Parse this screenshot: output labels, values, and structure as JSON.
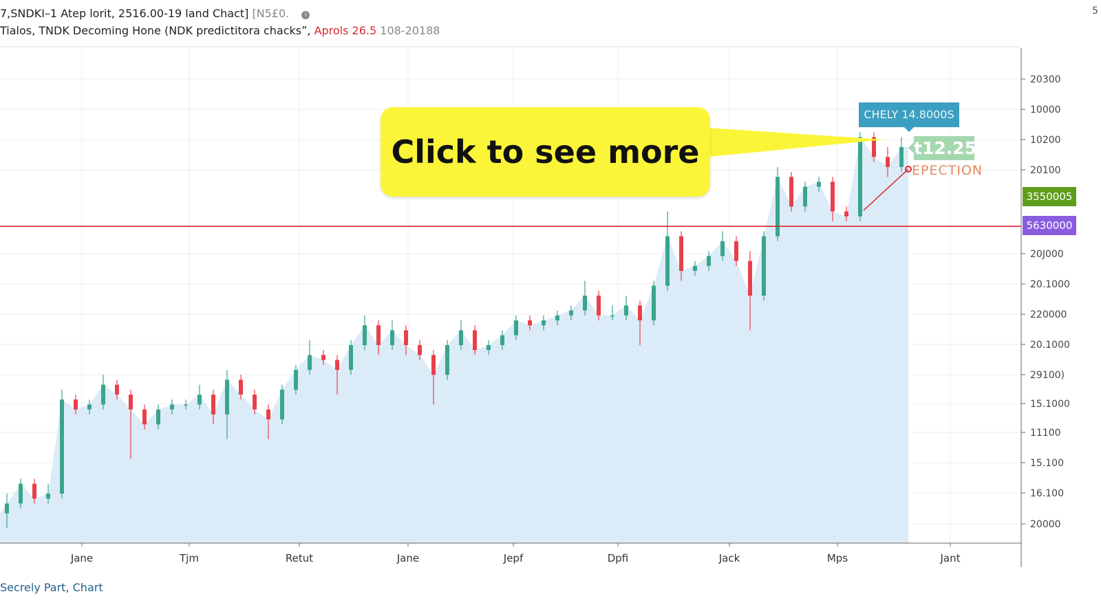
{
  "header": {
    "line1": "7,SNDKI–1 Atep lorit, 2516.00-19 land Chact]",
    "line1_suffix": "[N5£0.",
    "info_icon": "info-icon",
    "line2": "Tialos, TNDK Decoming Hone (NDK predictitora chacksˮ,",
    "line2_red": "Aprols 26.5",
    "line2_gray": "108-20188"
  },
  "corner_mark": "5",
  "footer": "Secrely Part, Chart",
  "callout": {
    "text": "Click to see more",
    "color": "#fbf53a"
  },
  "tooltip": "CHELY 14.8000S",
  "price_label": "t12.25",
  "projection_label": "EPECTION",
  "tags": {
    "green": "3550005",
    "purple": "5630000"
  },
  "colors": {
    "up": "#3aa58c",
    "down": "#e8404b",
    "area": "#dcebf8",
    "hline": "#d8262e",
    "green_tag": "#5f9e1c",
    "purple_tag": "#8a5ce0"
  },
  "chart_data": {
    "type": "candlestick",
    "ylim": [
      0,
      100
    ],
    "grid": true,
    "x_tick_labels": [
      "Jane",
      "Tjm",
      "Retut",
      "Jane",
      "Jepf",
      "Dpfi",
      "Jack",
      "Mps",
      "Jant"
    ],
    "y_tick_labels": [
      "20300",
      "10000",
      "10200",
      "20100",
      "20J000",
      "20.1000",
      "220000",
      "20.1000",
      "29100)",
      "15.1000",
      "11100",
      "15.100",
      "16.100",
      "20000"
    ],
    "horizontal_line": 64,
    "ohlc": [
      [
        6,
        10,
        3,
        8
      ],
      [
        8,
        13,
        7,
        12
      ],
      [
        12,
        13,
        8,
        9
      ],
      [
        9,
        12,
        8,
        10
      ],
      [
        10,
        31,
        9,
        29
      ],
      [
        29,
        30,
        26,
        27
      ],
      [
        27,
        29,
        26,
        28
      ],
      [
        28,
        34,
        27,
        32
      ],
      [
        32,
        33,
        29,
        30
      ],
      [
        30,
        31,
        17,
        27
      ],
      [
        27,
        28,
        23,
        24
      ],
      [
        24,
        28,
        23,
        27
      ],
      [
        27,
        29,
        26,
        28
      ],
      [
        28,
        29,
        27,
        28
      ],
      [
        28,
        32,
        27,
        30
      ],
      [
        30,
        31,
        24,
        26
      ],
      [
        26,
        35,
        21,
        33
      ],
      [
        33,
        34,
        29,
        30
      ],
      [
        30,
        31,
        26,
        27
      ],
      [
        27,
        28,
        21,
        25
      ],
      [
        25,
        32,
        24,
        31
      ],
      [
        31,
        36,
        30,
        35
      ],
      [
        35,
        41,
        34,
        38
      ],
      [
        38,
        39,
        36,
        37
      ],
      [
        37,
        38,
        30,
        35
      ],
      [
        35,
        41,
        34,
        40
      ],
      [
        40,
        46,
        39,
        44
      ],
      [
        44,
        45,
        38,
        40
      ],
      [
        40,
        45,
        39,
        43
      ],
      [
        43,
        44,
        38,
        40
      ],
      [
        40,
        41,
        37,
        38
      ],
      [
        38,
        39,
        28,
        34
      ],
      [
        34,
        41,
        33,
        40
      ],
      [
        40,
        45,
        39,
        43
      ],
      [
        43,
        44,
        38,
        39
      ],
      [
        39,
        41,
        38,
        40
      ],
      [
        40,
        43,
        39,
        42
      ],
      [
        42,
        46,
        41,
        45
      ],
      [
        45,
        46,
        43,
        44
      ],
      [
        44,
        46,
        43,
        45
      ],
      [
        45,
        47,
        44,
        46
      ],
      [
        46,
        48,
        45,
        47
      ],
      [
        47,
        53,
        46,
        50
      ],
      [
        50,
        51,
        45,
        46
      ],
      [
        46,
        48,
        45,
        46
      ],
      [
        46,
        50,
        45,
        48
      ],
      [
        48,
        49,
        40,
        45
      ],
      [
        45,
        53,
        44,
        52
      ],
      [
        52,
        67,
        51,
        62
      ],
      [
        62,
        63,
        53,
        55
      ],
      [
        55,
        57,
        54,
        56
      ],
      [
        56,
        59,
        55,
        58
      ],
      [
        58,
        63,
        57,
        61
      ],
      [
        61,
        62,
        56,
        57
      ],
      [
        57,
        59,
        43,
        50
      ],
      [
        50,
        63,
        49,
        62
      ],
      [
        62,
        76,
        61,
        74
      ],
      [
        74,
        75,
        67,
        68
      ],
      [
        68,
        73,
        67,
        72
      ],
      [
        72,
        74,
        71,
        73
      ],
      [
        73,
        74,
        65,
        67
      ],
      [
        67,
        68,
        65,
        66
      ],
      [
        66,
        83,
        65,
        82
      ],
      [
        82,
        83,
        77,
        78
      ],
      [
        78,
        80,
        74,
        76
      ],
      [
        76,
        82,
        75,
        80
      ]
    ]
  }
}
